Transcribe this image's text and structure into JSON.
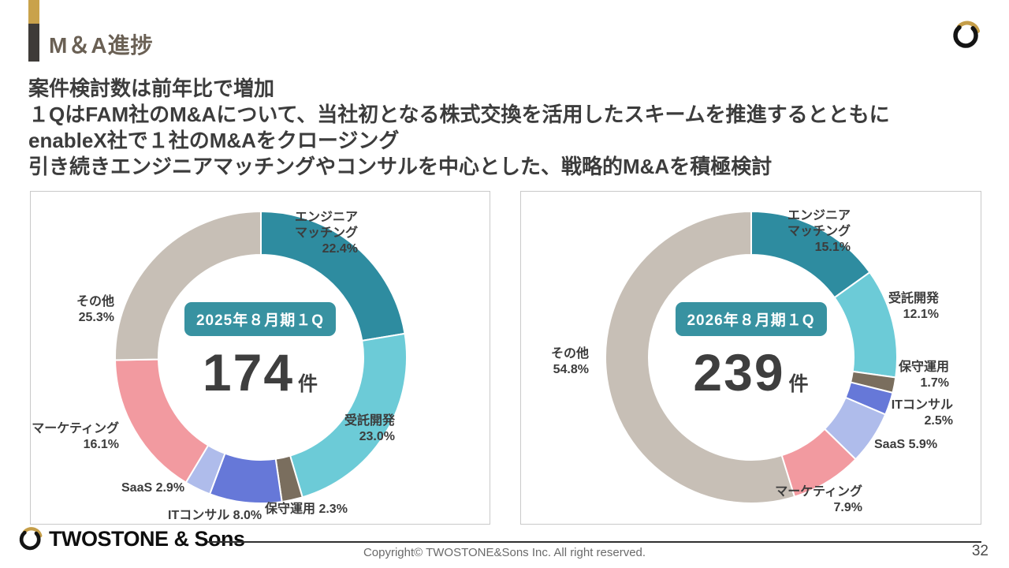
{
  "theme": {
    "accent-gold": "#C9A24B",
    "accent-dark": "#3E3B38",
    "badge-teal": "#3892A1",
    "panel-border": "#C9C9C9",
    "text-dark": "#3C3C3C",
    "title-brown": "#6A6054"
  },
  "header": {
    "title": "M＆A進捗"
  },
  "lead": {
    "lines": [
      "案件検討数は前年比で増加",
      "１QはFAM社のM&Aについて、当社初となる株式交換を活用したスキームを推進するとともに",
      "enableX社で１社のM&Aをクロージング",
      "引き続きエンジニアマッチングやコンサルを中心とした、戦略的M&Aを積極検討"
    ]
  },
  "chart_data": [
    {
      "type": "pie",
      "variant": "donut",
      "center_badge": "2025年８月期１Q",
      "center_value": "174",
      "center_unit": "件",
      "legend_position": "around",
      "series": [
        {
          "name": "エンジニアマッチング",
          "value": 22.4,
          "color": "#2E8CA0"
        },
        {
          "name": "受託開発",
          "value": 23.0,
          "color": "#6CCBD7"
        },
        {
          "name": "保守運用",
          "value": 2.3,
          "color": "#7A6E5E"
        },
        {
          "name": "ITコンサル",
          "value": 8.0,
          "color": "#6678D8"
        },
        {
          "name": "SaaS",
          "value": 2.9,
          "color": "#AFBCEB"
        },
        {
          "name": "マーケティング",
          "value": 16.1,
          "color": "#F29AA0"
        },
        {
          "name": "その他",
          "value": 25.3,
          "color": "#C7BFB6"
        }
      ],
      "display_labels": [
        "エンジニア\nマッチング\n22.4%",
        "受託開発\n23.0%",
        "保守運用 2.3%",
        "ITコンサル 8.0%",
        "SaaS 2.9%",
        "マーケティング\n16.1%",
        "その他\n25.3%"
      ]
    },
    {
      "type": "pie",
      "variant": "donut",
      "center_badge": "2026年８月期１Q",
      "center_value": "239",
      "center_unit": "件",
      "legend_position": "around",
      "series": [
        {
          "name": "エンジニアマッチング",
          "value": 15.1,
          "color": "#2E8CA0"
        },
        {
          "name": "受託開発",
          "value": 12.1,
          "color": "#6CCBD7"
        },
        {
          "name": "保守運用",
          "value": 1.7,
          "color": "#7A6E5E"
        },
        {
          "name": "ITコンサル",
          "value": 2.5,
          "color": "#6678D8"
        },
        {
          "name": "SaaS",
          "value": 5.9,
          "color": "#AFBCEB"
        },
        {
          "name": "マーケティング",
          "value": 7.9,
          "color": "#F29AA0"
        },
        {
          "name": "その他",
          "value": 54.8,
          "color": "#C7BFB6"
        }
      ],
      "display_labels": [
        "エンジニア\nマッチング\n15.1%",
        "受託開発\n12.1%",
        "保守運用\n1.7%",
        "ITコンサル\n2.5%",
        "SaaS 5.9%",
        "マーケティング\n7.9%",
        "その他\n54.8%"
      ]
    }
  ],
  "footer": {
    "logo_text": "TWOSTONE & Sons",
    "copyright": "Copyright© TWOSTONE&Sons Inc. All right reserved.",
    "page_number": "32"
  }
}
